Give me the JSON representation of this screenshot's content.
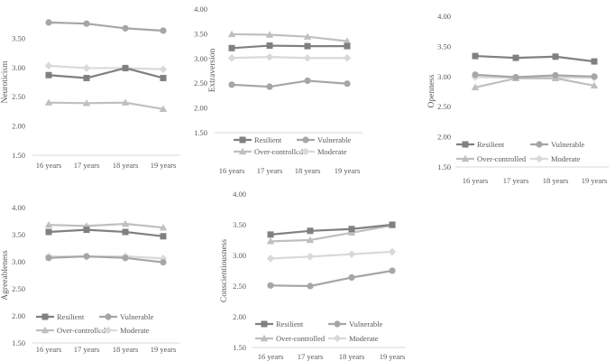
{
  "chart_data": [
    {
      "type": "line",
      "ylabel": "Neuroticism",
      "categories": [
        "16 years",
        "17 years",
        "18 years",
        "19 years"
      ],
      "ylim": [
        1.5,
        4.0
      ],
      "yticks": [
        "1.50",
        "2.00",
        "2.50",
        "3.00",
        "3.50",
        "4.00"
      ],
      "yticks_visible": [
        0,
        1,
        2,
        3,
        4
      ],
      "legend_position": "none",
      "series": [
        {
          "name": "Resilient",
          "values": [
            2.87,
            2.82,
            2.99,
            2.82
          ]
        },
        {
          "name": "Vulnerable",
          "values": [
            3.77,
            3.75,
            3.67,
            3.63
          ]
        },
        {
          "name": "Over-controlled",
          "values": [
            2.4,
            2.39,
            2.4,
            2.29
          ]
        },
        {
          "name": "Moderate",
          "values": [
            3.03,
            2.99,
            2.99,
            2.97
          ]
        }
      ]
    },
    {
      "type": "line",
      "ylabel": "Extraversion",
      "categories": [
        "16 years",
        "17 years",
        "18 years",
        "19 years"
      ],
      "ylim": [
        1.5,
        4.0
      ],
      "yticks": [
        "1.50",
        "2.00",
        "2.50",
        "3.00",
        "3.50",
        "4.00"
      ],
      "yticks_visible": [
        0,
        1,
        2,
        3,
        4,
        5
      ],
      "legend_position": "bottom",
      "series": [
        {
          "name": "Resilient",
          "values": [
            3.21,
            3.26,
            3.25,
            3.25
          ]
        },
        {
          "name": "Vulnerable",
          "values": [
            2.47,
            2.43,
            2.55,
            2.49
          ]
        },
        {
          "name": "Over-controlled",
          "values": [
            3.49,
            3.48,
            3.44,
            3.35
          ]
        },
        {
          "name": "Moderate",
          "values": [
            3.01,
            3.03,
            3.01,
            3.01
          ]
        }
      ]
    },
    {
      "type": "line",
      "ylabel": "Openness",
      "categories": [
        "16 years",
        "17 years",
        "18 years",
        "19 years"
      ],
      "ylim": [
        1.5,
        4.0
      ],
      "yticks": [
        "1.50",
        "2.00",
        "2.50",
        "3.00",
        "3.50",
        "4.00"
      ],
      "yticks_visible": [
        0,
        1,
        2,
        3,
        4,
        5
      ],
      "legend_position": "bottom",
      "series": [
        {
          "name": "Resilient",
          "values": [
            3.34,
            3.31,
            3.33,
            3.25
          ]
        },
        {
          "name": "Vulnerable",
          "values": [
            3.03,
            2.99,
            3.02,
            3.0
          ]
        },
        {
          "name": "Over-controlled",
          "values": [
            2.82,
            2.97,
            2.97,
            2.85
          ]
        },
        {
          "name": "Moderate",
          "values": [
            2.99,
            2.98,
            2.98,
            2.98
          ]
        }
      ]
    },
    {
      "type": "line",
      "ylabel": "Agreeableness",
      "categories": [
        "16 years",
        "17 years",
        "18 years",
        "19 years"
      ],
      "ylim": [
        1.5,
        4.0
      ],
      "yticks": [
        "1.50",
        "2.00",
        "2.50",
        "3.00",
        "3.50",
        "4.00"
      ],
      "yticks_visible": [
        0,
        1,
        2,
        3,
        4,
        5
      ],
      "legend_position": "bottom",
      "series": [
        {
          "name": "Resilient",
          "values": [
            3.55,
            3.59,
            3.55,
            3.47
          ]
        },
        {
          "name": "Vulnerable",
          "values": [
            3.07,
            3.1,
            3.07,
            2.99
          ]
        },
        {
          "name": "Over-controlled",
          "values": [
            3.68,
            3.66,
            3.7,
            3.63
          ]
        },
        {
          "name": "Moderate",
          "values": [
            3.1,
            3.09,
            3.1,
            3.06
          ]
        }
      ]
    },
    {
      "type": "line",
      "ylabel": "Conscientiousness",
      "categories": [
        "16 years",
        "17 years",
        "18 years",
        "19 years"
      ],
      "ylim": [
        1.5,
        4.0
      ],
      "yticks": [
        "1.50",
        "2.00",
        "2.50",
        "3.00",
        "3.50",
        "4.00"
      ],
      "yticks_visible": [
        0,
        1,
        2,
        3,
        4,
        5
      ],
      "legend_position": "bottom",
      "series": [
        {
          "name": "Resilient",
          "values": [
            3.34,
            3.4,
            3.43,
            3.5
          ]
        },
        {
          "name": "Vulnerable",
          "values": [
            2.51,
            2.5,
            2.64,
            2.75
          ]
        },
        {
          "name": "Over-controlled",
          "values": [
            3.23,
            3.25,
            3.37,
            3.49
          ]
        },
        {
          "name": "Moderate",
          "values": [
            2.95,
            2.98,
            3.02,
            3.06
          ]
        }
      ]
    }
  ],
  "styles": {
    "Resilient": {
      "color": "#808080",
      "marker": "square"
    },
    "Vulnerable": {
      "color": "#a6a6a6",
      "marker": "circle"
    },
    "Over-controlled": {
      "color": "#bfbfbf",
      "marker": "triangle"
    },
    "Moderate": {
      "color": "#d9d9d9",
      "marker": "diamond"
    },
    "axis": "#d9d9d9",
    "text": "#595959"
  }
}
